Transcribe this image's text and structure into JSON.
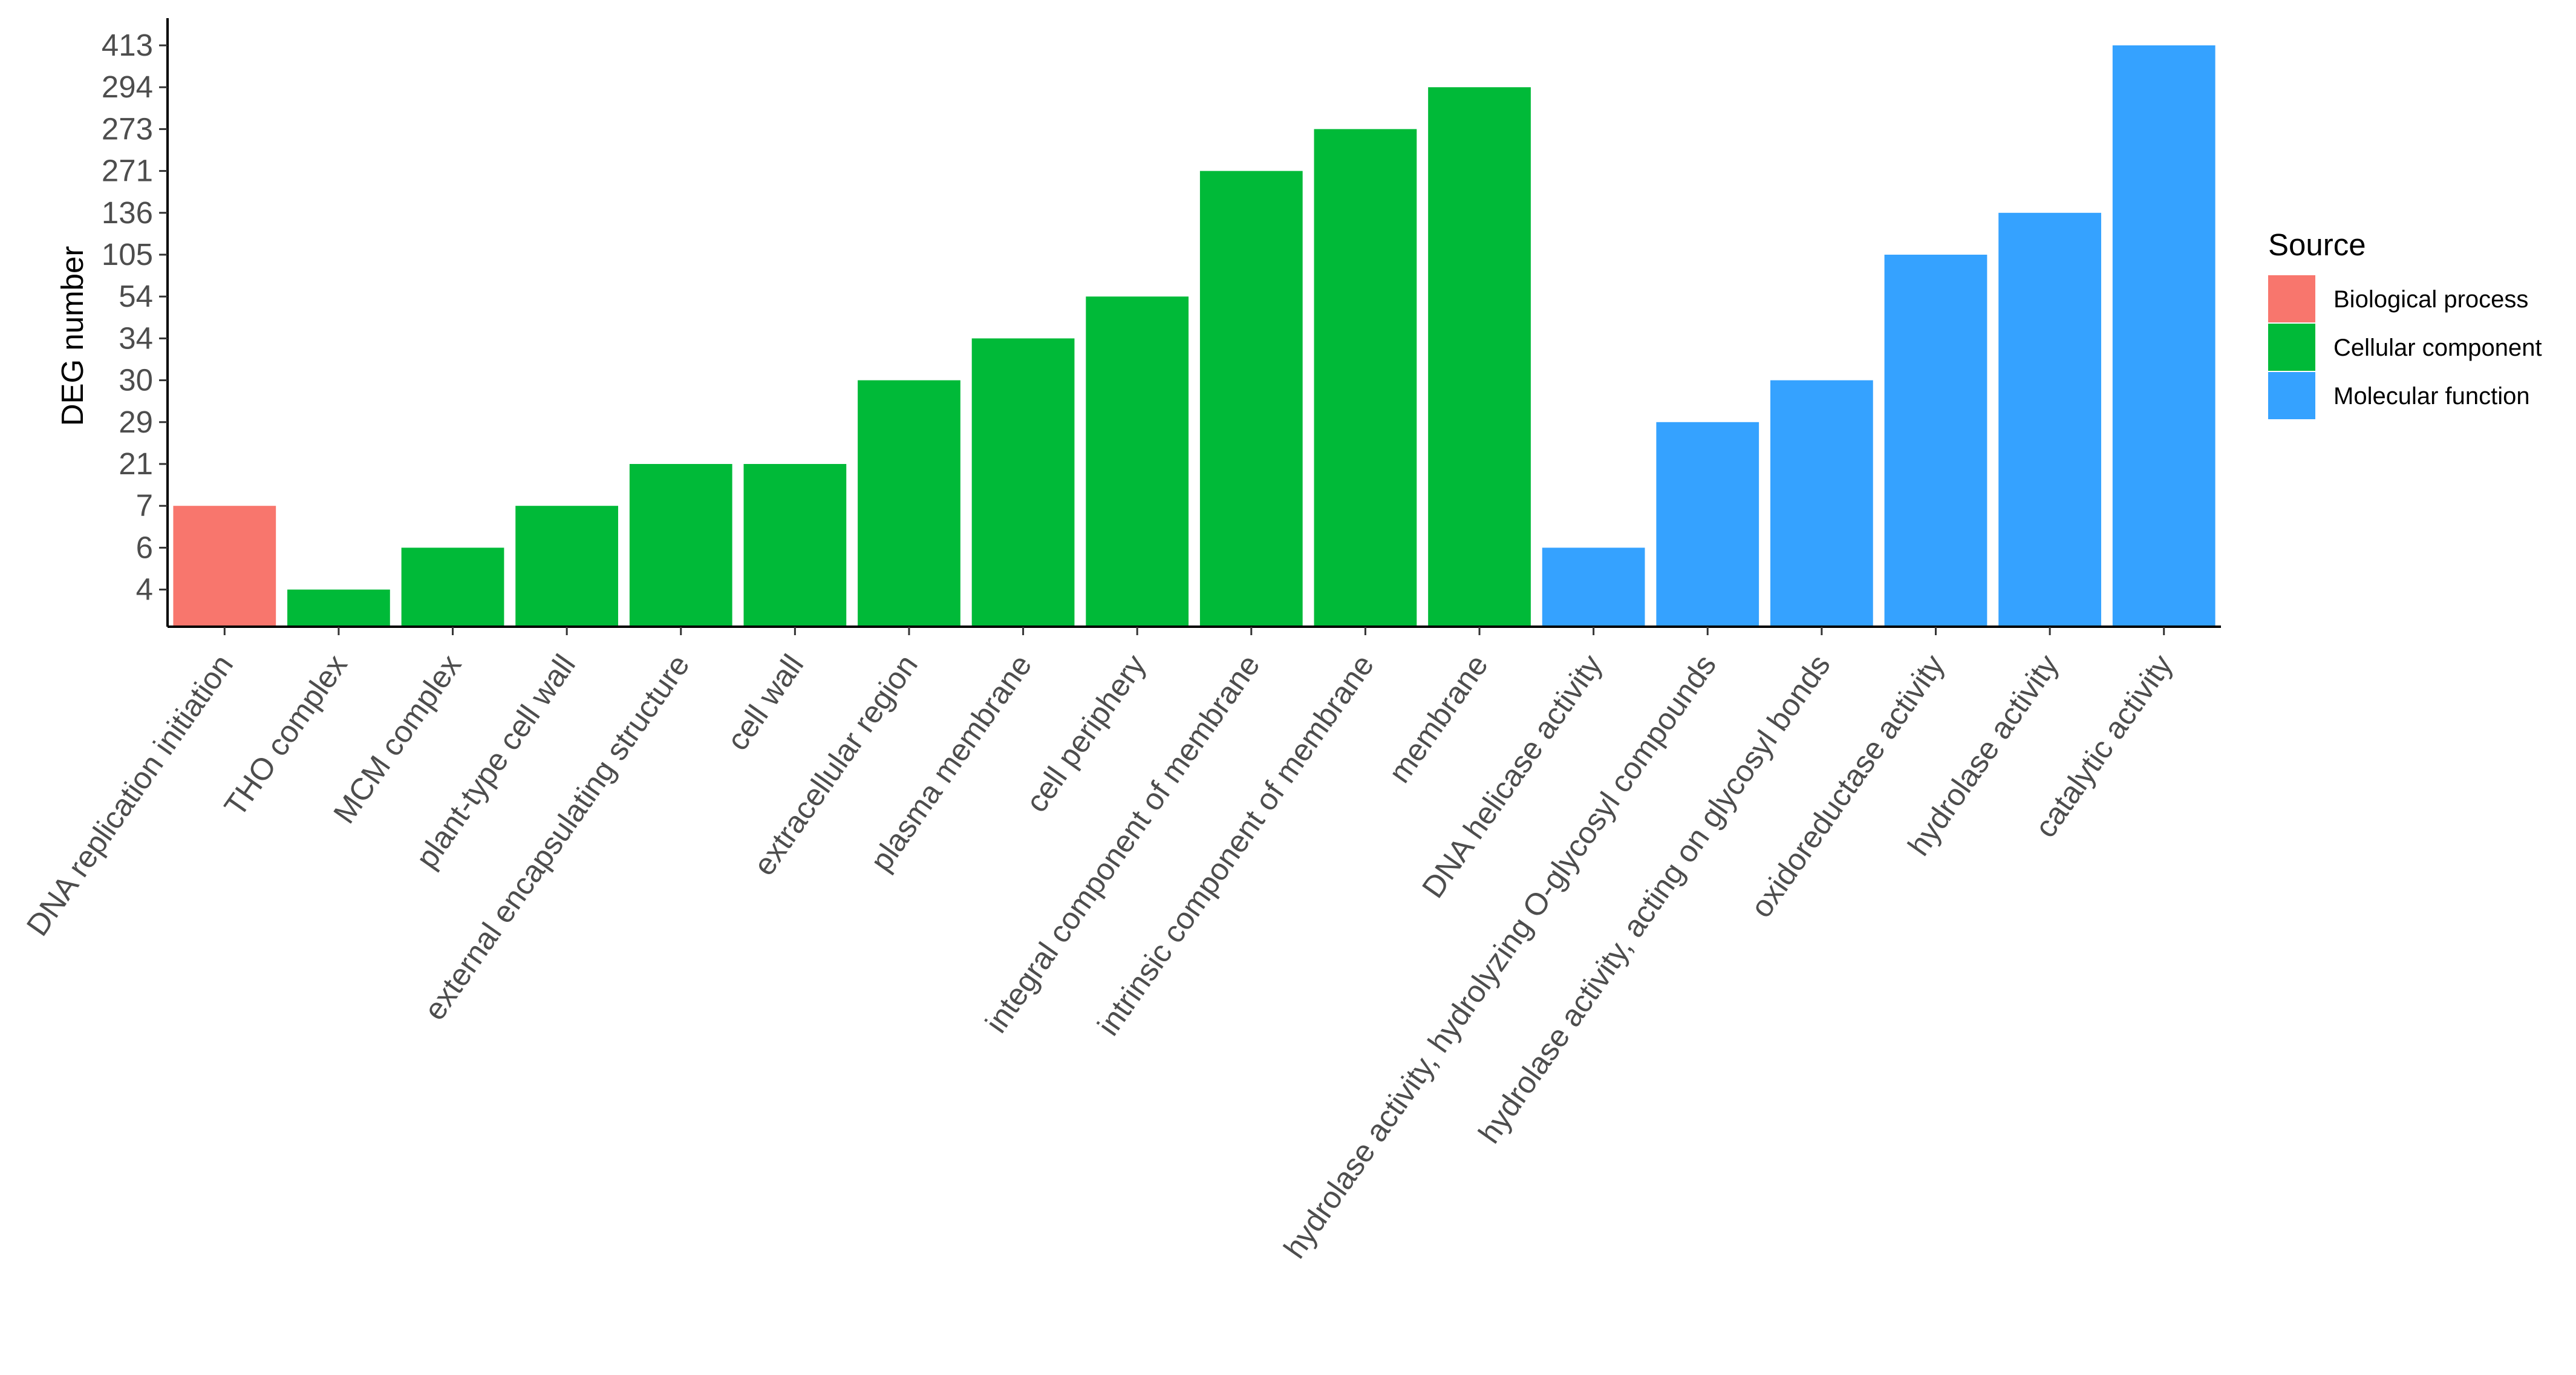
{
  "chart_data": {
    "type": "bar",
    "ylabel": "DEG number",
    "xlabel": "",
    "y_scale": "categorical (tick labels are the distinct bar values, evenly spaced)",
    "y_ticks": [
      "4",
      "6",
      "7",
      "21",
      "29",
      "30",
      "34",
      "54",
      "105",
      "136",
      "271",
      "273",
      "294",
      "413"
    ],
    "grid": false,
    "legend": {
      "title": "Source",
      "position": "right",
      "entries": [
        {
          "label": "Biological process",
          "color": "#F8766D"
        },
        {
          "label": "Cellular component",
          "color": "#00BA38"
        },
        {
          "label": "Molecular function",
          "color": "#35A2FF"
        }
      ]
    },
    "bars": [
      {
        "category": "DNA replication initiation",
        "value": 7,
        "source": "Biological process"
      },
      {
        "category": "THO complex",
        "value": 4,
        "source": "Cellular component"
      },
      {
        "category": "MCM complex",
        "value": 6,
        "source": "Cellular component"
      },
      {
        "category": "plant-type cell wall",
        "value": 7,
        "source": "Cellular component"
      },
      {
        "category": "external encapsulating structure",
        "value": 21,
        "source": "Cellular component"
      },
      {
        "category": "cell wall",
        "value": 21,
        "source": "Cellular component"
      },
      {
        "category": "extracellular region",
        "value": 30,
        "source": "Cellular component"
      },
      {
        "category": "plasma membrane",
        "value": 34,
        "source": "Cellular component"
      },
      {
        "category": "cell periphery",
        "value": 54,
        "source": "Cellular component"
      },
      {
        "category": "integral component of membrane",
        "value": 271,
        "source": "Cellular component"
      },
      {
        "category": "intrinsic component of membrane",
        "value": 273,
        "source": "Cellular component"
      },
      {
        "category": "membrane",
        "value": 294,
        "source": "Cellular component"
      },
      {
        "category": "DNA helicase activity",
        "value": 6,
        "source": "Molecular function"
      },
      {
        "category": "hydrolase activity, hydrolyzing O-glycosyl compounds",
        "value": 29,
        "source": "Molecular function"
      },
      {
        "category": "hydrolase activity, acting on glycosyl bonds",
        "value": 30,
        "source": "Molecular function"
      },
      {
        "category": "oxidoreductase activity",
        "value": 105,
        "source": "Molecular function"
      },
      {
        "category": "hydrolase activity",
        "value": 136,
        "source": "Molecular function"
      },
      {
        "category": "catalytic activity",
        "value": 413,
        "source": "Molecular function"
      }
    ]
  }
}
